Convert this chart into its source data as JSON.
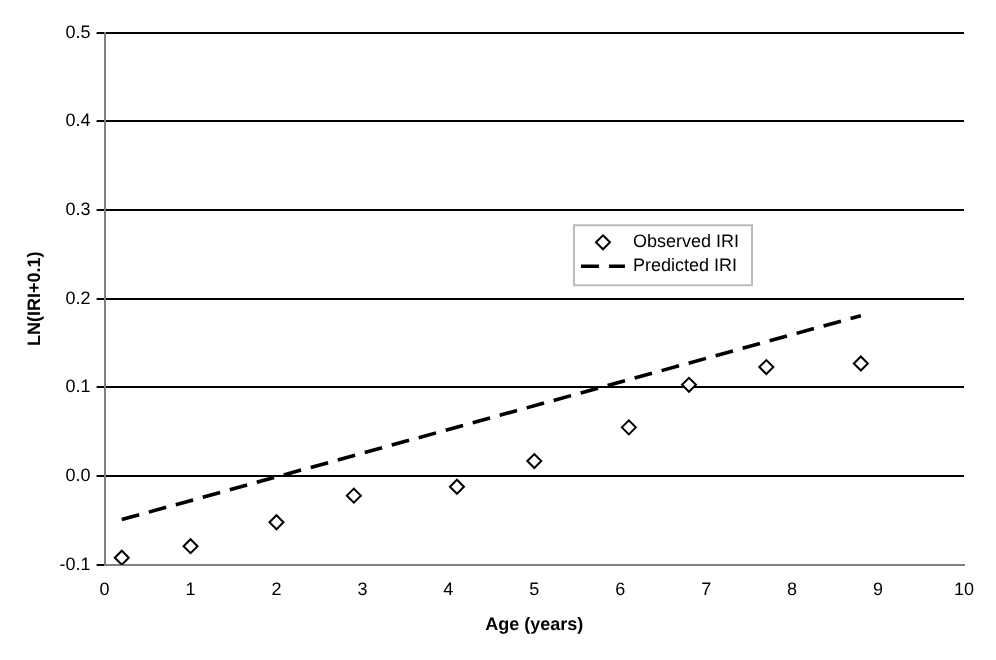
{
  "chart_data": {
    "type": "scatter",
    "xlabel": "Age (years)",
    "ylabel": "LN(IRI+0.1)",
    "xlim": [
      0,
      10
    ],
    "xticks": [
      0,
      1,
      2,
      3,
      4,
      5,
      6,
      7,
      8,
      9,
      10
    ],
    "ylim": [
      -0.1,
      0.5
    ],
    "yticks": [
      {
        "value": -0.1,
        "label": "-0.1"
      },
      {
        "value": 0,
        "label": "0.0"
      },
      {
        "value": 0.1,
        "label": "0.1"
      },
      {
        "value": 0.2,
        "label": "0.2"
      },
      {
        "value": 0.3,
        "label": "0.3"
      },
      {
        "value": 0.4,
        "label": "0.4"
      },
      {
        "value": 0.5,
        "label": "0.5"
      }
    ],
    "grid": "y",
    "legend": "right",
    "series": [
      {
        "name": "Observed IRI",
        "marker": "diamond",
        "color": "#000000",
        "x": [
          0.2,
          1.0,
          2.0,
          2.9,
          4.1,
          5.0,
          6.1,
          6.8,
          7.7,
          8.8
        ],
        "values": [
          -0.092,
          -0.079,
          -0.052,
          -0.022,
          -0.012,
          0.017,
          0.055,
          0.103,
          0.123,
          0.127
        ]
      },
      {
        "name": "Predicted IRI",
        "type": "line",
        "marker": "none",
        "line_style": "dashed",
        "color": "#000000",
        "x": [
          0.2,
          8.8
        ],
        "values": [
          -0.049,
          0.181
        ]
      }
    ]
  }
}
